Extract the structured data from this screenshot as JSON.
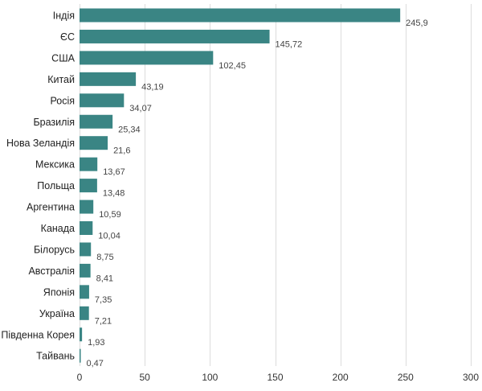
{
  "chart_data": {
    "type": "bar",
    "orientation": "horizontal",
    "categories": [
      "Індія",
      "ЄС",
      "США",
      "Китай",
      "Росія",
      "Бразилія",
      "Нова Зеландія",
      "Мексика",
      "Польща",
      "Аргентина",
      "Канада",
      "Білорусь",
      "Австралія",
      "Японія",
      "Україна",
      "Південна Корея",
      "Тайвань"
    ],
    "values": [
      245.9,
      145.72,
      102.45,
      43.19,
      34.07,
      25.34,
      21.6,
      13.67,
      13.48,
      10.59,
      10.04,
      8.75,
      8.41,
      7.35,
      7.21,
      1.93,
      0.47
    ],
    "value_labels": [
      "245,9",
      "145,72",
      "102,45",
      "43,19",
      "34,07",
      "25,34",
      "21,6",
      "13,67",
      "13,48",
      "10,59",
      "10,04",
      "8,75",
      "8,41",
      "7,35",
      "7,21",
      "1,93",
      "0,47"
    ],
    "x_ticks": [
      0,
      50,
      100,
      150,
      200,
      250,
      300
    ],
    "x_tick_labels": [
      "0",
      "50",
      "100",
      "150",
      "200",
      "250",
      "300"
    ],
    "xlim": [
      0,
      300
    ],
    "grid": "vertical",
    "legend": "none",
    "title": "",
    "xlabel": "",
    "ylabel": "",
    "bar_color": "#3a8584"
  }
}
